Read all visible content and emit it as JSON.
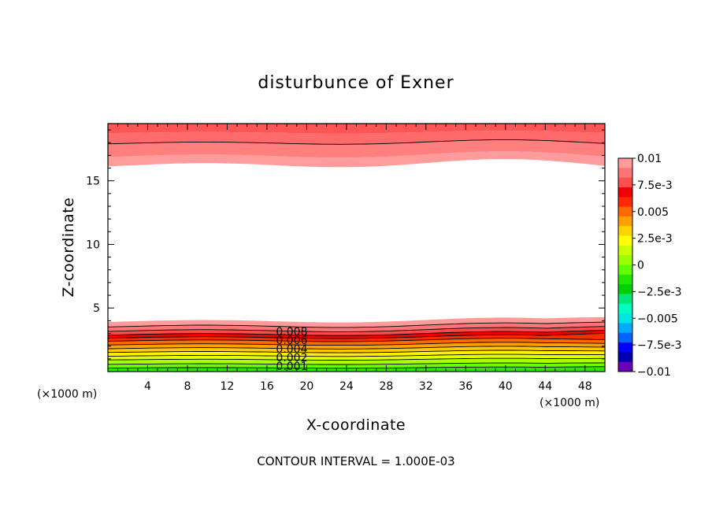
{
  "chart_data": {
    "type": "contour",
    "title": "disturbunce of Exner",
    "xlabel": "X-coordinate",
    "ylabel": "Z-coordinate",
    "x_unit": "(×1000 m)",
    "x_unit_right": "(×1000 m)",
    "xlim": [
      0,
      50
    ],
    "ylim": [
      0,
      19.5
    ],
    "xticks": [
      4,
      8,
      12,
      16,
      20,
      24,
      28,
      32,
      36,
      40,
      44,
      48
    ],
    "yticks": [
      5,
      10,
      15
    ],
    "footer": "CONTOUR INTERVAL = 1.000E-03",
    "contour_labels": [
      "0.008",
      "0.006",
      "0.004",
      "0.002",
      "0.001"
    ],
    "colorbar": {
      "labels": [
        "0.01",
        "7.5e-3",
        "0.005",
        "2.5e-3",
        "0",
        "−2.5e-3",
        "−0.005",
        "−7.5e-3",
        "−0.01"
      ],
      "colors": [
        "#ff9b9b",
        "#ff7575",
        "#ff5050",
        "#f00000",
        "#ff2a00",
        "#ff6a00",
        "#ff9f00",
        "#ffd400",
        "#ffff00",
        "#c9ff00",
        "#9bff00",
        "#60ff00",
        "#22e600",
        "#00d000",
        "#00e67a",
        "#00ffc0",
        "#00e6e6",
        "#00aaff",
        "#0066ff",
        "#0000ff",
        "#0000b0",
        "#6a00b8"
      ]
    },
    "bottom_layer_levels": [
      0.008,
      0.007,
      0.006,
      0.005,
      0.004,
      0.003,
      0.002,
      0.001
    ],
    "top_layer_levels": [
      0.01,
      0.009,
      0.008
    ]
  }
}
